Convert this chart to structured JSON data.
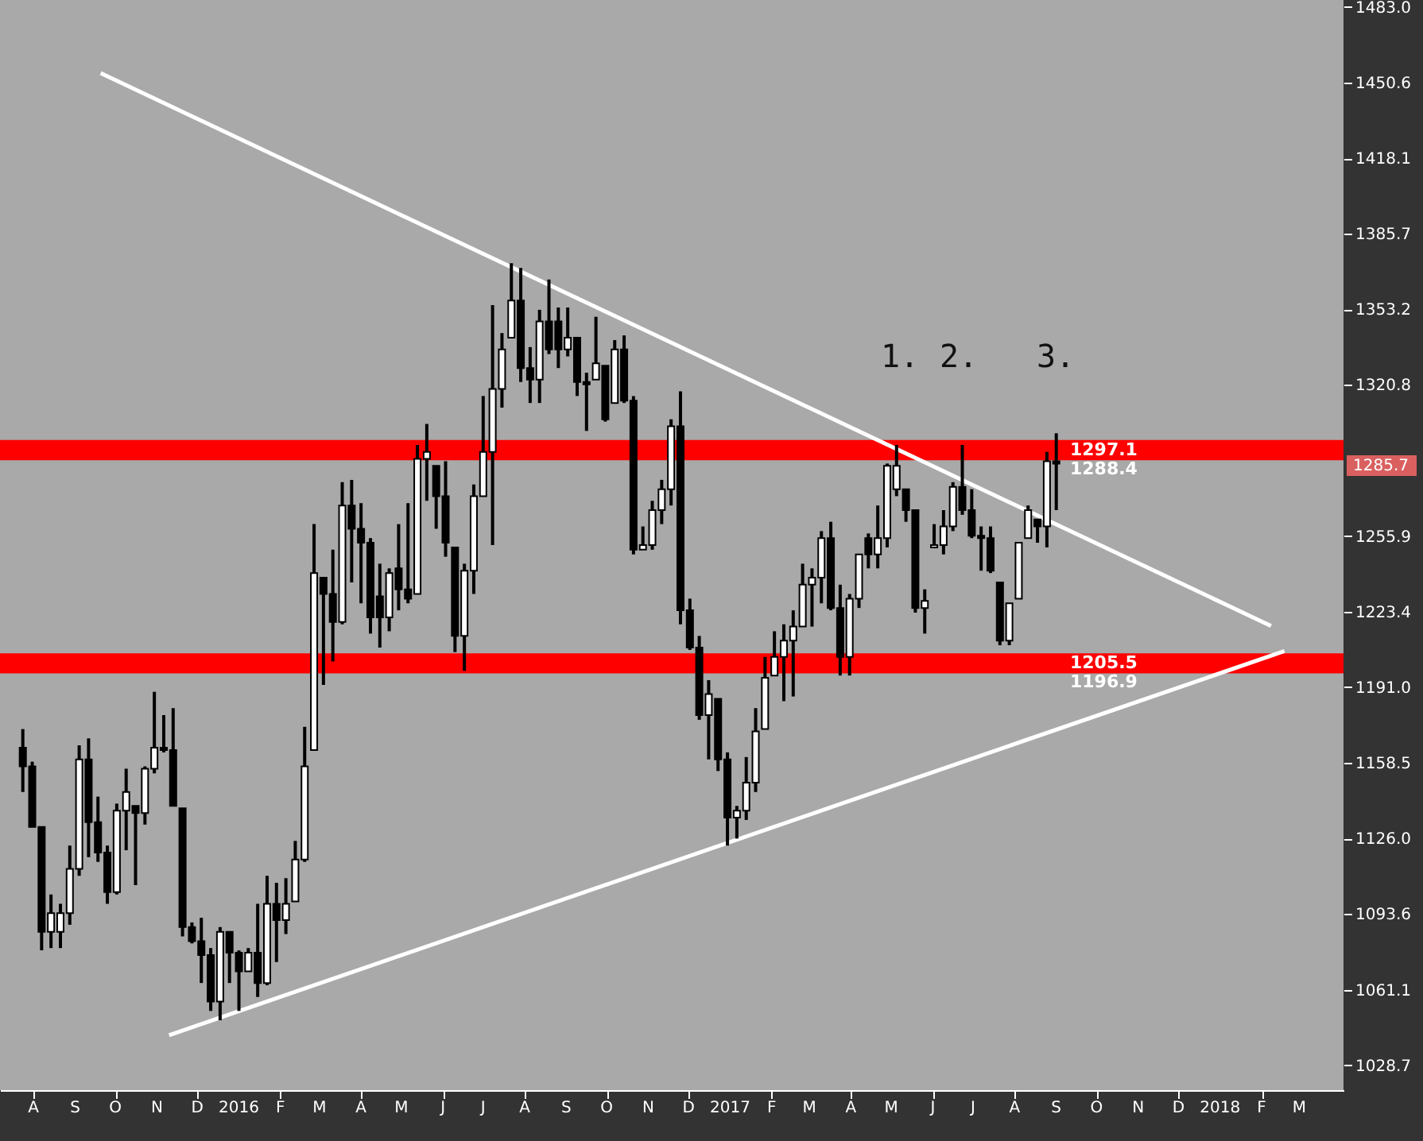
{
  "chart_data": {
    "type": "candlestick",
    "x": [
      "2015-07-24",
      "2015-07-31",
      "2015-08-07",
      "2015-08-14",
      "2015-08-21",
      "2015-08-28",
      "2015-09-04",
      "2015-09-11",
      "2015-09-18",
      "2015-09-25",
      "2015-10-02",
      "2015-10-09",
      "2015-10-16",
      "2015-10-23",
      "2015-10-30",
      "2015-11-06",
      "2015-11-13",
      "2015-11-20",
      "2015-11-27",
      "2015-12-04",
      "2015-12-11",
      "2015-12-18",
      "2015-12-25",
      "2016-01-01",
      "2016-01-08",
      "2016-01-15",
      "2016-01-22",
      "2016-01-29",
      "2016-02-05",
      "2016-02-12",
      "2016-02-19",
      "2016-02-26",
      "2016-03-04",
      "2016-03-11",
      "2016-03-18",
      "2016-03-25",
      "2016-04-01",
      "2016-04-08",
      "2016-04-15",
      "2016-04-22",
      "2016-04-29",
      "2016-05-06",
      "2016-05-13",
      "2016-05-20",
      "2016-05-27",
      "2016-06-03",
      "2016-06-10",
      "2016-06-17",
      "2016-06-24",
      "2016-07-01",
      "2016-07-08",
      "2016-07-15",
      "2016-07-22",
      "2016-07-29",
      "2016-08-05",
      "2016-08-12",
      "2016-08-19",
      "2016-08-26",
      "2016-09-02",
      "2016-09-09",
      "2016-09-16",
      "2016-09-23",
      "2016-09-30",
      "2016-10-07",
      "2016-10-14",
      "2016-10-21",
      "2016-10-28",
      "2016-11-04",
      "2016-11-11",
      "2016-11-18",
      "2016-11-25",
      "2016-12-02",
      "2016-12-09",
      "2016-12-16",
      "2016-12-23",
      "2016-12-30",
      "2017-01-06",
      "2017-01-13",
      "2017-01-20",
      "2017-01-27",
      "2017-02-03",
      "2017-02-10",
      "2017-02-17",
      "2017-02-24",
      "2017-03-03",
      "2017-03-10",
      "2017-03-17",
      "2017-03-24",
      "2017-03-31",
      "2017-04-07",
      "2017-04-14",
      "2017-04-21",
      "2017-04-28",
      "2017-05-05",
      "2017-05-12",
      "2017-05-19",
      "2017-05-26",
      "2017-06-02",
      "2017-06-09",
      "2017-06-16",
      "2017-06-23",
      "2017-06-30",
      "2017-07-07",
      "2017-07-14",
      "2017-07-21",
      "2017-07-28",
      "2017-08-04",
      "2017-08-11",
      "2017-08-18",
      "2017-08-25",
      "2017-09-01"
    ],
    "ohlc": [
      [
        1165,
        1173,
        1146,
        1157
      ],
      [
        1157,
        1159,
        1131,
        1131
      ],
      [
        1131,
        1131,
        1078,
        1086
      ],
      [
        1086,
        1102,
        1079,
        1094
      ],
      [
        1086,
        1098,
        1079,
        1094
      ],
      [
        1094,
        1123,
        1089,
        1113
      ],
      [
        1113,
        1166,
        1110,
        1160
      ],
      [
        1160,
        1169,
        1118,
        1133
      ],
      [
        1133,
        1144,
        1116,
        1120
      ],
      [
        1120,
        1123,
        1098,
        1103
      ],
      [
        1103,
        1141,
        1102,
        1138
      ],
      [
        1138,
        1156,
        1121,
        1146
      ],
      [
        1140,
        1140,
        1106,
        1137
      ],
      [
        1137,
        1157,
        1132,
        1156
      ],
      [
        1156,
        1189,
        1154,
        1165
      ],
      [
        1165,
        1179,
        1163,
        1164
      ],
      [
        1164,
        1182,
        1140,
        1140
      ],
      [
        1139,
        1139,
        1084,
        1088
      ],
      [
        1088,
        1090,
        1081,
        1082
      ],
      [
        1082,
        1092,
        1064,
        1076
      ],
      [
        1076,
        1079,
        1052,
        1056
      ],
      [
        1056,
        1088,
        1048,
        1086
      ],
      [
        1086,
        1086,
        1064,
        1077
      ],
      [
        1077,
        1078,
        1052,
        1069
      ],
      [
        1069,
        1079,
        1069,
        1077
      ],
      [
        1077,
        1098,
        1058,
        1064
      ],
      [
        1064,
        1110,
        1063,
        1098
      ],
      [
        1098,
        1107,
        1073,
        1091
      ],
      [
        1091,
        1109,
        1085,
        1098
      ],
      [
        1099,
        1125,
        1099,
        1117
      ],
      [
        1117,
        1174,
        1116,
        1157
      ],
      [
        1164,
        1261,
        1164,
        1240
      ],
      [
        1238,
        1238,
        1192,
        1231
      ],
      [
        1231,
        1250,
        1202,
        1219
      ],
      [
        1219,
        1279,
        1218,
        1269
      ],
      [
        1269,
        1280,
        1236,
        1259
      ],
      [
        1259,
        1270,
        1227,
        1253
      ],
      [
        1253,
        1255,
        1214,
        1221
      ],
      [
        1230,
        1244,
        1208,
        1221
      ],
      [
        1221,
        1242,
        1215,
        1240
      ],
      [
        1242,
        1261,
        1224,
        1233
      ],
      [
        1233,
        1270,
        1227,
        1229
      ],
      [
        1231,
        1295,
        1231,
        1289
      ],
      [
        1289,
        1304,
        1271,
        1292
      ],
      [
        1286,
        1286,
        1259,
        1273
      ],
      [
        1273,
        1288,
        1247,
        1253
      ],
      [
        1251,
        1251,
        1206,
        1213
      ],
      [
        1213,
        1244,
        1198,
        1241
      ],
      [
        1241,
        1278,
        1231,
        1273
      ],
      [
        1273,
        1316,
        1273,
        1292
      ],
      [
        1292,
        1355,
        1252,
        1319
      ],
      [
        1319,
        1343,
        1311,
        1336
      ],
      [
        1341,
        1373,
        1341,
        1357
      ],
      [
        1357,
        1371,
        1322,
        1328
      ],
      [
        1328,
        1337,
        1313,
        1323
      ],
      [
        1323,
        1353,
        1313,
        1348
      ],
      [
        1348,
        1366,
        1334,
        1336
      ],
      [
        1348,
        1354,
        1328,
        1336
      ],
      [
        1336,
        1354,
        1333,
        1341
      ],
      [
        1341,
        1341,
        1316,
        1322
      ],
      [
        1322,
        1326,
        1301,
        1321
      ],
      [
        1323,
        1350,
        1323,
        1330
      ],
      [
        1329,
        1329,
        1305,
        1306
      ],
      [
        1313,
        1340,
        1313,
        1336
      ],
      [
        1336,
        1342,
        1313,
        1314
      ],
      [
        1314,
        1316,
        1248,
        1250
      ],
      [
        1250,
        1260,
        1250,
        1252
      ],
      [
        1252,
        1271,
        1250,
        1267
      ],
      [
        1267,
        1280,
        1261,
        1276
      ],
      [
        1276,
        1306,
        1269,
        1303
      ],
      [
        1303,
        1318,
        1218,
        1224
      ],
      [
        1224,
        1229,
        1207,
        1208
      ],
      [
        1208,
        1213,
        1177,
        1179
      ],
      [
        1179,
        1194,
        1160,
        1188
      ],
      [
        1186,
        1186,
        1155,
        1160
      ],
      [
        1160,
        1163,
        1123,
        1135
      ],
      [
        1135,
        1140,
        1126,
        1138
      ],
      [
        1138,
        1161,
        1134,
        1150
      ],
      [
        1150,
        1182,
        1146,
        1172
      ],
      [
        1173,
        1204,
        1173,
        1195
      ],
      [
        1196,
        1215,
        1196,
        1204
      ],
      [
        1204,
        1218,
        1185,
        1211
      ],
      [
        1211,
        1224,
        1187,
        1217
      ],
      [
        1217,
        1244,
        1217,
        1235
      ],
      [
        1235,
        1242,
        1217,
        1238
      ],
      [
        1238,
        1258,
        1227,
        1255
      ],
      [
        1255,
        1262,
        1224,
        1225
      ],
      [
        1225,
        1235,
        1196,
        1204
      ],
      [
        1204,
        1231,
        1196,
        1229
      ],
      [
        1229,
        1248,
        1225,
        1248
      ],
      [
        1255,
        1257,
        1242,
        1248
      ],
      [
        1248,
        1269,
        1242,
        1255
      ],
      [
        1255,
        1287,
        1251,
        1286
      ],
      [
        1276,
        1295,
        1273,
        1286
      ],
      [
        1276,
        1276,
        1262,
        1267
      ],
      [
        1267,
        1267,
        1223,
        1225
      ],
      [
        1225,
        1233,
        1214,
        1228
      ],
      [
        1251,
        1261,
        1251,
        1252
      ],
      [
        1252,
        1267,
        1248,
        1260
      ],
      [
        1260,
        1279,
        1258,
        1277
      ],
      [
        1277,
        1295,
        1265,
        1267
      ],
      [
        1267,
        1276,
        1255,
        1256
      ],
      [
        1256,
        1260,
        1241,
        1255
      ],
      [
        1255,
        1260,
        1240,
        1241
      ],
      [
        1236,
        1236,
        1209,
        1211
      ],
      [
        1211,
        1227,
        1209,
        1227
      ],
      [
        1229,
        1253,
        1229,
        1253
      ],
      [
        1255,
        1269,
        1255,
        1267
      ],
      [
        1263,
        1263,
        1253,
        1260
      ],
      [
        1260,
        1292,
        1251,
        1288
      ],
      [
        1288,
        1300,
        1267,
        1287
      ]
    ],
    "series": [
      {
        "type": "line",
        "color": "#ffffff",
        "x": [
          "2015-09-20",
          "2018-02-08"
        ],
        "values": [
          1454.6,
          1217.3
        ]
      },
      {
        "type": "line",
        "color": "#ffffff",
        "x": [
          "2015-11-10",
          "2018-02-18"
        ],
        "values": [
          1041.6,
          1206.5
        ]
      }
    ],
    "bands": [
      {
        "axis": "y",
        "from": 1288.4,
        "to": 1297.1,
        "label": "1297.1\n1288.4",
        "color": "#ff0000"
      },
      {
        "axis": "y",
        "from": 1196.9,
        "to": 1205.5,
        "label": "1205.5\n1196.9",
        "color": "#ff0000"
      }
    ],
    "annotations": [
      "1.",
      "2.",
      "3.",
      "1285.7"
    ],
    "xlim": [
      "2015-07-07",
      "2018-04-03"
    ],
    "xticks": [
      {
        "value": "2015-08",
        "label": "A"
      },
      {
        "value": "2015-09",
        "label": "S"
      },
      {
        "value": "2015-10",
        "label": "O"
      },
      {
        "value": "2015-11",
        "label": "N"
      },
      {
        "value": "2015-12",
        "label": "D"
      },
      "2016",
      {
        "value": "2016-02",
        "label": "F"
      },
      {
        "value": "2016-03",
        "label": "M"
      },
      {
        "value": "2016-04",
        "label": "A"
      },
      {
        "value": "2016-05",
        "label": "M"
      },
      {
        "value": "2016-06",
        "label": "J"
      },
      {
        "value": "2016-07",
        "label": "J"
      },
      {
        "value": "2016-08",
        "label": "A"
      },
      {
        "value": "2016-09",
        "label": "S"
      },
      {
        "value": "2016-10",
        "label": "O"
      },
      {
        "value": "2016-11",
        "label": "N"
      },
      {
        "value": "2016-12",
        "label": "D"
      },
      "2017",
      {
        "value": "2017-02",
        "label": "F"
      },
      {
        "value": "2017-03",
        "label": "M"
      },
      {
        "value": "2017-04",
        "label": "A"
      },
      {
        "value": "2017-05",
        "label": "M"
      },
      {
        "value": "2017-06",
        "label": "J"
      },
      {
        "value": "2017-07",
        "label": "J"
      },
      {
        "value": "2017-08",
        "label": "A"
      },
      {
        "value": "2017-09",
        "label": "S"
      },
      {
        "value": "2017-10",
        "label": "O"
      },
      {
        "value": "2017-11",
        "label": "N"
      },
      {
        "value": "2017-12",
        "label": "D"
      },
      "2018",
      {
        "value": "2018-02",
        "label": "F"
      },
      {
        "value": "2018-03",
        "label": "M"
      }
    ],
    "ylim": [
      1018,
      1486
    ],
    "yticks": [
      1028.7,
      1061.1,
      1093.6,
      {
        "value": 1126,
        "label": "1126.0"
      },
      1158.5,
      {
        "value": 1191,
        "label": "1191.0"
      },
      1223.4,
      1255.9,
      1320.8,
      1353.2,
      1385.7,
      1418.1,
      1450.6,
      {
        "value": 1483,
        "label": "1483.0"
      }
    ]
  }
}
